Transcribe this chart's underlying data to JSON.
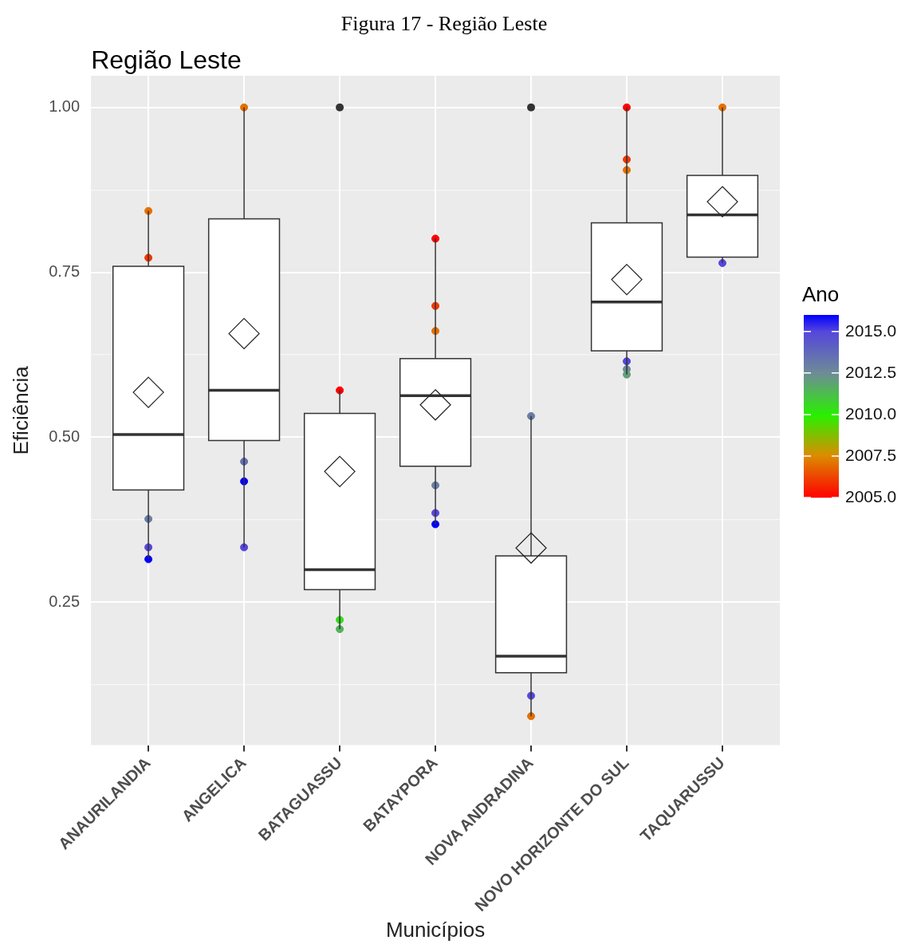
{
  "chart_data": {
    "type": "box",
    "title": "Região Leste",
    "xlabel": "Municípios",
    "ylabel": "Eficiência",
    "clabel": "Ano",
    "annotations": [
      "Figura 17 - Região Leste"
    ],
    "categories": [
      "ANAURILANDIA",
      "ANGELICA",
      "BATAGUASSU",
      "BATAYPORA",
      "NOVA ANDRADINA",
      "NOVO HORIZONTE DO SUL",
      "TAQUARUSSU"
    ],
    "boxes": [
      {
        "low": 0.315,
        "q1": 0.42,
        "median": 0.504,
        "q3": 0.759,
        "high": 0.843,
        "mean": 0.568
      },
      {
        "low": 0.333,
        "q1": 0.495,
        "median": 0.571,
        "q3": 0.831,
        "high": 1.0,
        "mean": 0.657
      },
      {
        "low": 0.209,
        "q1": 0.269,
        "median": 0.299,
        "q3": 0.536,
        "high": 0.571,
        "mean": 0.448,
        "outliers": [
          1.0
        ]
      },
      {
        "low": 0.368,
        "q1": 0.456,
        "median": 0.563,
        "q3": 0.619,
        "high": 0.801,
        "mean": 0.549
      },
      {
        "low": 0.077,
        "q1": 0.143,
        "median": 0.168,
        "q3": 0.32,
        "high": 0.532,
        "mean": 0.332,
        "outliers": [
          1.0
        ]
      },
      {
        "low": 0.595,
        "q1": 0.631,
        "median": 0.705,
        "q3": 0.825,
        "high": 1.0,
        "mean": 0.739
      },
      {
        "low": 0.764,
        "q1": 0.773,
        "median": 0.837,
        "q3": 0.897,
        "high": 1.0,
        "mean": 0.857
      }
    ],
    "series": [
      {
        "type": "scatter",
        "x": [
          "ANAURILANDIA",
          "ANAURILANDIA",
          "ANAURILANDIA",
          "ANAURILANDIA",
          "ANAURILANDIA",
          "ANGELICA",
          "ANGELICA",
          "ANGELICA",
          "ANGELICA",
          "BATAGUASSU",
          "BATAGUASSU",
          "BATAGUASSU",
          "BATAYPORA",
          "BATAYPORA",
          "BATAYPORA",
          "BATAYPORA",
          "BATAYPORA",
          "BATAYPORA",
          "NOVA ANDRADINA",
          "NOVA ANDRADINA",
          "NOVA ANDRADINA",
          "NOVO HORIZONTE DO SUL",
          "NOVO HORIZONTE DO SUL",
          "NOVO HORIZONTE DO SUL",
          "NOVO HORIZONTE DO SUL",
          "NOVO HORIZONTE DO SUL",
          "NOVO HORIZONTE DO SUL",
          "TAQUARUSSU",
          "TAQUARUSSU"
        ],
        "values": [
          0.843,
          0.772,
          0.376,
          0.333,
          0.315,
          1.0,
          0.463,
          0.433,
          0.333,
          0.571,
          0.223,
          0.209,
          0.801,
          0.699,
          0.661,
          0.427,
          0.385,
          0.368,
          0.532,
          0.108,
          0.077,
          1.0,
          0.921,
          0.905,
          0.615,
          0.603,
          0.595,
          1.0,
          0.764
        ],
        "colors": [
          "#e36f00",
          "#f13700",
          "#697ea4",
          "#5546dc",
          "#0000ff",
          "#e36f00",
          "#6470b2",
          "#0000ff",
          "#5546dc",
          "#ff0000",
          "#37da21",
          "#53b35c",
          "#ff0000",
          "#f13700",
          "#e36f00",
          "#697ea4",
          "#5546dc",
          "#0000ff",
          "#697ea4",
          "#5546dc",
          "#e36f00",
          "#ff0000",
          "#f13700",
          "#e36f00",
          "#5546dc",
          "#6e8b97",
          "#619f7a",
          "#e36f00",
          "#5546dc"
        ],
        "cvalues": [
          2007,
          2006,
          2013,
          2015,
          2016,
          2007,
          2013.5,
          2016,
          2015,
          2005,
          2010.5,
          2011.5,
          2005,
          2006,
          2007,
          2013,
          2015,
          2016,
          2013,
          2015,
          2007,
          2005,
          2006,
          2007,
          2015,
          2012.5,
          2012,
          2007,
          2015
        ]
      }
    ],
    "marker": "circle",
    "ylim": [
      0.033,
      1.048
    ],
    "yticks": [
      {
        "value": 0.125,
        "label": null
      },
      {
        "value": 0.25,
        "label": "0.25"
      },
      {
        "value": 0.375,
        "label": null
      },
      {
        "value": 0.5,
        "label": "0.50"
      },
      {
        "value": 0.625,
        "label": null
      },
      {
        "value": 0.75,
        "label": "0.75"
      },
      {
        "value": 0.875,
        "label": null
      },
      {
        "value": 1.0,
        "label": "1.00"
      }
    ],
    "grid": true,
    "clim": [
      2005,
      2016
    ],
    "cticks": [
      {
        "value": 2005,
        "label": "2005.0"
      },
      {
        "value": 2007.5,
        "label": "2007.5"
      },
      {
        "value": 2010,
        "label": "2010.0"
      },
      {
        "value": 2012.5,
        "label": "2012.5"
      },
      {
        "value": 2015,
        "label": "2015.0"
      }
    ]
  }
}
